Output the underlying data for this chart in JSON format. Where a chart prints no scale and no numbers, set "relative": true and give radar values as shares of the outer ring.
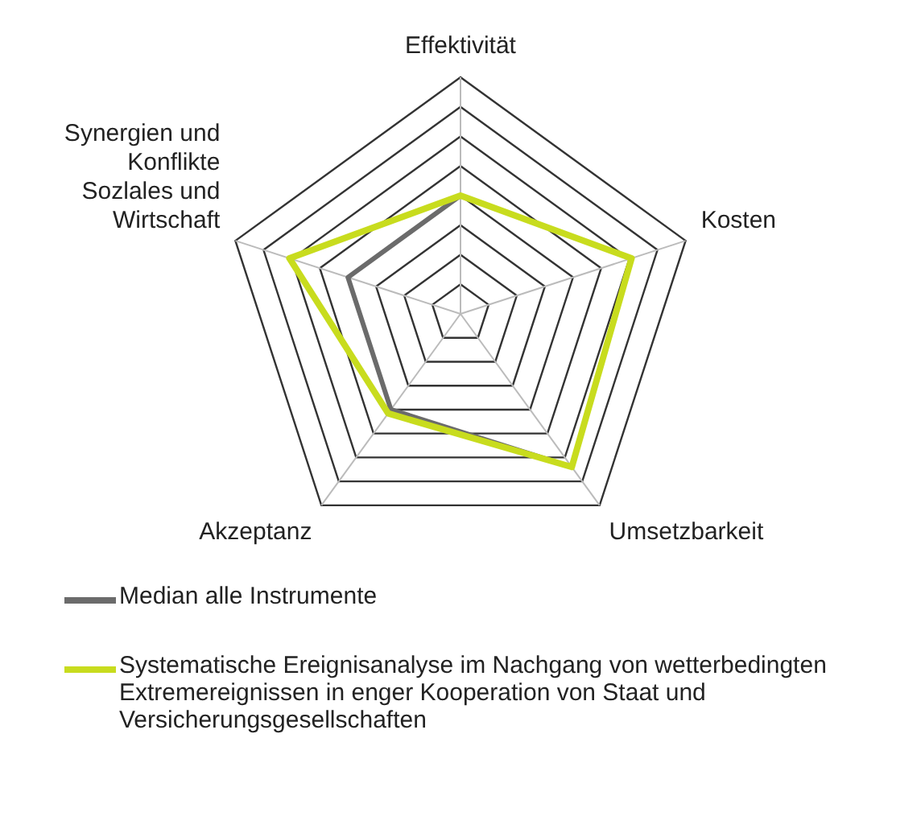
{
  "chart_data": {
    "type": "radar",
    "relative": true,
    "categories": [
      "Effektivität",
      "Kosten",
      "Umsetzbarkeit",
      "Akzeptanz",
      "Synergien und\nKonflikte\nSozlales und\nWirtschaft"
    ],
    "series": [
      {
        "name": "Median alle Instrumente",
        "color": "#6b6b6b",
        "values": [
          0.5,
          0.76,
          0.8,
          0.5,
          0.5
        ]
      },
      {
        "name": "Systematische Ereignisanalyse im Nachgang von wetterbedingten Extremereignissen in enger Kooperation von Staat und Versicherungsgesellschaften",
        "color": "#c8dc1e",
        "values": [
          0.5,
          0.76,
          0.8,
          0.52,
          0.76
        ]
      }
    ],
    "legend": "bottom",
    "marker": "none",
    "grid": true
  }
}
